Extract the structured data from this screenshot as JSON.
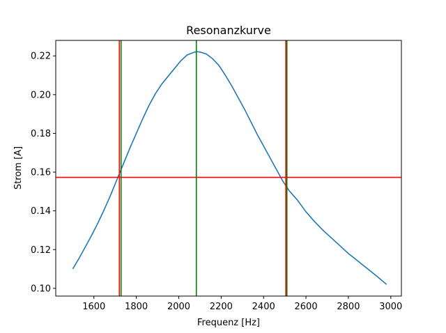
{
  "chart_data": {
    "type": "line",
    "title": "Resonanzkurve",
    "xlabel": "Frequenz [Hz]",
    "ylabel": "Strom [A]",
    "xlim": [
      1420,
      3050
    ],
    "ylim": [
      0.096,
      0.228
    ],
    "xticks": [
      1600,
      1800,
      2000,
      2200,
      2400,
      2600,
      2800,
      3000
    ],
    "xtick_labels": [
      "1600",
      "1800",
      "2000",
      "2200",
      "2400",
      "2600",
      "2800",
      "3000"
    ],
    "yticks": [
      0.1,
      0.12,
      0.14,
      0.16,
      0.18,
      0.2,
      0.22
    ],
    "ytick_labels": [
      "0.10",
      "0.12",
      "0.14",
      "0.16",
      "0.18",
      "0.20",
      "0.22"
    ],
    "grid": false,
    "series": [
      {
        "color": "#1f77b4",
        "x": [
          1500,
          1530,
          1560,
          1590,
          1620,
          1650,
          1680,
          1710,
          1740,
          1770,
          1800,
          1830,
          1860,
          1890,
          1920,
          1950,
          1980,
          2010,
          2040,
          2070,
          2085,
          2100,
          2130,
          2160,
          2190,
          2220,
          2250,
          2280,
          2310,
          2340,
          2370,
          2400,
          2430,
          2460,
          2490,
          2520,
          2560,
          2600,
          2640,
          2680,
          2720,
          2760,
          2800,
          2840,
          2880,
          2920,
          2950,
          2980
        ],
        "y": [
          0.11,
          0.1155,
          0.1215,
          0.1275,
          0.134,
          0.141,
          0.1485,
          0.1565,
          0.1645,
          0.1725,
          0.18,
          0.1875,
          0.1945,
          0.2005,
          0.2055,
          0.2095,
          0.2135,
          0.2175,
          0.2205,
          0.2218,
          0.2222,
          0.222,
          0.221,
          0.2185,
          0.215,
          0.21,
          0.2045,
          0.1985,
          0.1925,
          0.186,
          0.1795,
          0.1735,
          0.1675,
          0.1615,
          0.1555,
          0.1505,
          0.1455,
          0.1395,
          0.1345,
          0.13,
          0.126,
          0.122,
          0.118,
          0.1145,
          0.111,
          0.1075,
          0.1048,
          0.102
        ]
      }
    ],
    "hlines": [
      {
        "y": 0.1573,
        "color": "#ff0000"
      }
    ],
    "vlines": [
      {
        "x": 1720,
        "color": "#ff0000"
      },
      {
        "x": 1728,
        "color": "#008000"
      },
      {
        "x": 2083,
        "color": "#008000"
      },
      {
        "x": 2505,
        "color": "#ff0000"
      },
      {
        "x": 2510,
        "color": "#008000"
      }
    ]
  }
}
